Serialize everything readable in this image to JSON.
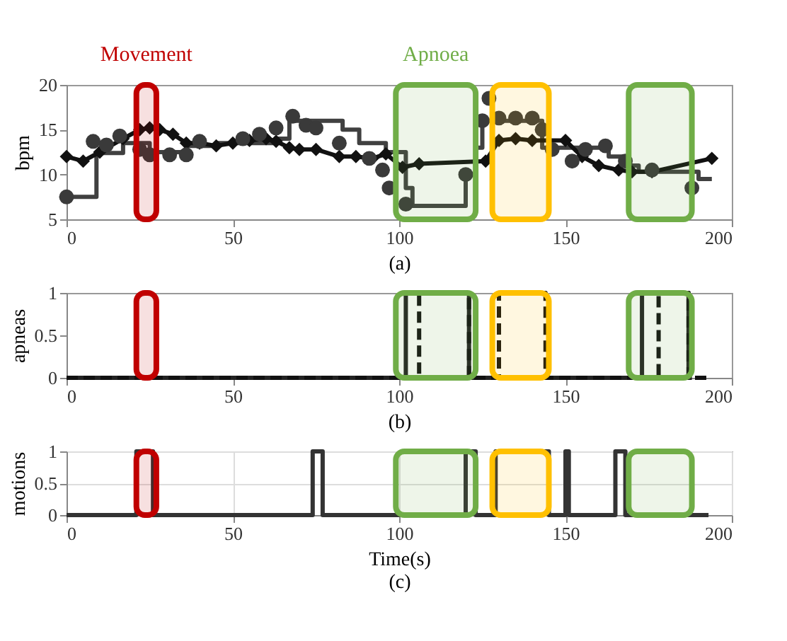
{
  "chart_data": [
    {
      "type": "line",
      "xlabel": "(a)",
      "ylabel": "bpm",
      "xlim": [
        0,
        200
      ],
      "xticks": [
        0,
        50,
        100,
        150,
        200
      ],
      "ylim": [
        5,
        20
      ],
      "yticks": [
        5,
        10,
        15,
        20
      ],
      "grid": false,
      "series": [
        {
          "type": "step",
          "color": "#404040",
          "marker": "none",
          "line_style": "solid",
          "x": [
            0,
            9,
            17,
            25,
            36,
            45,
            63,
            67,
            83,
            88,
            96,
            102,
            104,
            120,
            123,
            125,
            143,
            150,
            163,
            168,
            172,
            190,
            194
          ],
          "values": [
            7.5,
            12.4,
            13.5,
            12.5,
            13.2,
            13.5,
            14,
            16,
            15,
            13.5,
            12.5,
            8.5,
            6.5,
            10,
            13,
            16,
            13,
            13,
            12,
            11,
            10.3,
            9.5,
            9.5
          ]
        },
        {
          "color": "#111111",
          "marker": "diamond",
          "line_style": "solid",
          "x": [
            0,
            5,
            10,
            17,
            22,
            25,
            28,
            32,
            36,
            40,
            45,
            50,
            55,
            60,
            63,
            67,
            70,
            75,
            82,
            87,
            92,
            96,
            101,
            106,
            126,
            130,
            135,
            140,
            150,
            155,
            160,
            166,
            170,
            176,
            194
          ],
          "values": [
            12,
            11.5,
            12.5,
            14,
            15,
            15.2,
            15,
            14.5,
            13.5,
            13.5,
            13.2,
            13.5,
            13.8,
            14,
            13.7,
            13,
            12.8,
            12.8,
            12,
            12,
            11.8,
            12.3,
            10.8,
            11.2,
            11.5,
            13.8,
            14,
            13.8,
            13.8,
            12,
            11,
            10.5,
            10.3,
            10.3,
            11.8
          ]
        },
        {
          "type": "scatter",
          "color": "#3a3a3a",
          "marker": "circle",
          "x": [
            0,
            8,
            12,
            16,
            22,
            25,
            31,
            36,
            40,
            53,
            58,
            63,
            68,
            72,
            75,
            82,
            91,
            95,
            97,
            102,
            120,
            125,
            127,
            130,
            135,
            140,
            143,
            146,
            152,
            156,
            162,
            168,
            176,
            188
          ],
          "values": [
            7.5,
            13.7,
            13.3,
            14.3,
            12.8,
            12.2,
            12.2,
            12.2,
            13.7,
            14,
            14.5,
            15.2,
            16.5,
            15.5,
            15.2,
            13.5,
            11.8,
            10.5,
            8.5,
            6.7,
            10,
            16,
            18.5,
            16.3,
            16.3,
            16.3,
            15,
            12.8,
            11.5,
            12.8,
            13.2,
            11.5,
            10.5,
            8.5
          ]
        }
      ],
      "bands": [
        {
          "axis": "x",
          "from": 21,
          "to": 27,
          "label": "Movement",
          "color": "#c00000"
        },
        {
          "axis": "x",
          "from": 99,
          "to": 123,
          "label": "Apnoea",
          "color": "#70ad47"
        },
        {
          "axis": "x",
          "from": 128,
          "to": 145,
          "color": "#ffc000"
        },
        {
          "axis": "x",
          "from": 169,
          "to": 188,
          "color": "#70ad47"
        }
      ]
    },
    {
      "type": "step",
      "xlabel": "(b)",
      "ylabel": "apneas",
      "xlim": [
        0,
        200
      ],
      "xticks": [
        0,
        50,
        100,
        150,
        200
      ],
      "ylim": [
        0,
        1
      ],
      "yticks": [
        0,
        0.5,
        1
      ],
      "grid": false,
      "series": [
        {
          "color": "#222222",
          "marker": "none",
          "line_style": "solid",
          "x": [
            0,
            102,
            121,
            173,
            187,
            188
          ],
          "values": [
            0,
            1,
            0,
            1,
            0,
            0
          ]
        },
        {
          "color": "#111111",
          "marker": "none",
          "line_style": "dashed",
          "x": [
            0,
            106,
            121,
            130,
            144,
            178,
            187,
            194
          ],
          "values": [
            0,
            1,
            0,
            1,
            0,
            1,
            0,
            0
          ]
        }
      ],
      "bands": [
        {
          "axis": "x",
          "from": 21,
          "to": 27,
          "color": "#c00000"
        },
        {
          "axis": "x",
          "from": 99,
          "to": 123,
          "color": "#70ad47"
        },
        {
          "axis": "x",
          "from": 128,
          "to": 145,
          "color": "#ffc000"
        },
        {
          "axis": "x",
          "from": 169,
          "to": 188,
          "color": "#70ad47"
        }
      ]
    },
    {
      "type": "step",
      "xlabel": "Time(s)",
      "ylabel": "motions",
      "annotations": [
        "(c)"
      ],
      "xlim": [
        0,
        200
      ],
      "xticks": [
        0,
        50,
        100,
        150,
        200
      ],
      "ylim": [
        0,
        1
      ],
      "yticks": [
        0,
        0.5,
        1
      ],
      "grid": true,
      "series": [
        {
          "color": "#333333",
          "marker": "none",
          "line_style": "solid",
          "x": [
            0,
            21,
            26,
            74,
            77,
            120,
            123,
            129,
            145,
            150,
            151,
            165,
            168,
            193
          ],
          "values": [
            0,
            1,
            0,
            1,
            0,
            1,
            0,
            1,
            0,
            1,
            0,
            1,
            0,
            0
          ]
        }
      ],
      "bands": [
        {
          "axis": "x",
          "from": 21,
          "to": 27,
          "color": "#c00000"
        },
        {
          "axis": "x",
          "from": 99,
          "to": 123,
          "color": "#70ad47"
        },
        {
          "axis": "x",
          "from": 128,
          "to": 145,
          "color": "#ffc000"
        },
        {
          "axis": "x",
          "from": 169,
          "to": 188,
          "color": "#70ad47"
        }
      ]
    }
  ]
}
